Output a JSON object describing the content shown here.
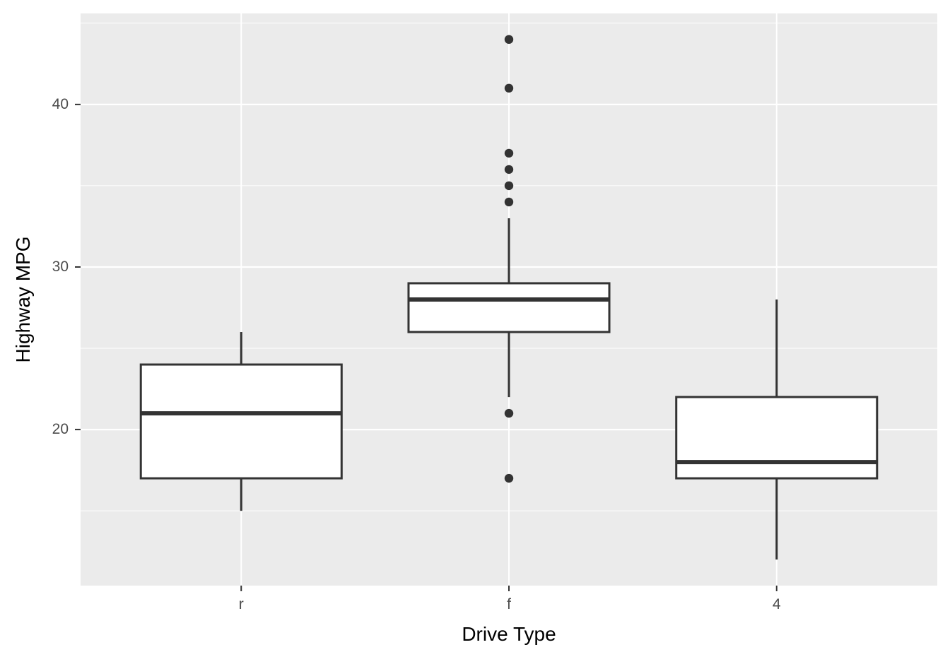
{
  "figure": {
    "background": "#FFFFFF"
  },
  "chart_data": {
    "type": "boxplot",
    "title": "",
    "xlabel": "Drive Type",
    "ylabel": "Highway MPG",
    "categories": [
      "r",
      "f",
      "4"
    ],
    "y_axis": {
      "ticks": [
        20,
        30,
        40
      ],
      "minor_ticks": [
        15,
        25,
        35,
        45
      ],
      "range": [
        10.4,
        45.6
      ]
    },
    "grid": {
      "major": true,
      "minor": true,
      "vertical_major_at_categories": true
    },
    "legend": null,
    "series": [
      {
        "category": "r",
        "lower_whisker": 15,
        "q1": 17,
        "median": 21,
        "q3": 24,
        "upper_whisker": 26,
        "outliers": []
      },
      {
        "category": "f",
        "lower_whisker": 22,
        "q1": 26,
        "median": 28,
        "q3": 29,
        "upper_whisker": 33,
        "outliers": [
          44,
          41,
          37,
          36,
          35,
          34,
          21,
          17
        ]
      },
      {
        "category": "4",
        "lower_whisker": 12,
        "q1": 17,
        "median": 18,
        "q3": 22,
        "upper_whisker": 28,
        "outliers": []
      }
    ],
    "colors": {
      "panel_background": "#EBEBEB",
      "gridline": "#FFFFFF",
      "box_fill": "#FFFFFF",
      "box_stroke": "#333333",
      "median_stroke": "#333333",
      "whisker_stroke": "#333333",
      "outlier_fill": "#333333",
      "tick_mark": "#333333",
      "tick_label": "#4D4D4D",
      "axis_title": "#000000"
    }
  }
}
